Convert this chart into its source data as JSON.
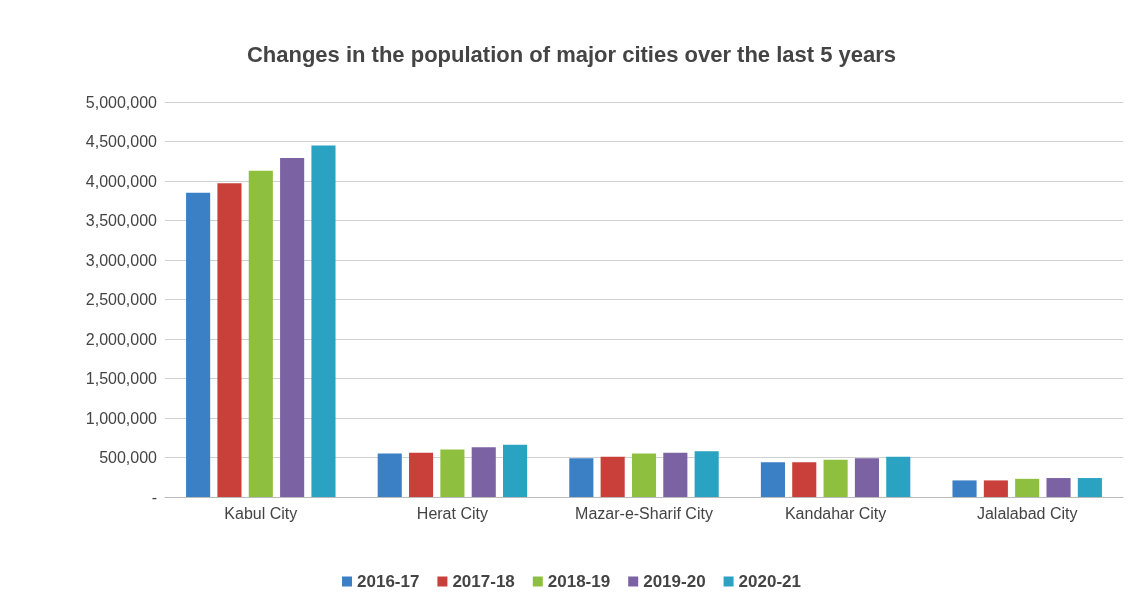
{
  "chart_data": {
    "type": "bar",
    "title": "Changes in the population of major cities over the last 5 years",
    "categories": [
      "Kabul City",
      "Herat City",
      "Mazar-e-Sharif City",
      "Kandahar City",
      "Jalalabad City"
    ],
    "series": [
      {
        "name": "2016-17",
        "color": "#3b7fc4",
        "values": [
          3850000,
          550000,
          490000,
          440000,
          210000
        ]
      },
      {
        "name": "2017-18",
        "color": "#c9403a",
        "values": [
          3970000,
          560000,
          510000,
          440000,
          210000
        ]
      },
      {
        "name": "2018-19",
        "color": "#8fbf3f",
        "values": [
          4130000,
          600000,
          550000,
          470000,
          230000
        ]
      },
      {
        "name": "2019-20",
        "color": "#7b62a3",
        "values": [
          4290000,
          630000,
          560000,
          490000,
          240000
        ]
      },
      {
        "name": "2020-21",
        "color": "#2aa3c2",
        "values": [
          4450000,
          660000,
          580000,
          510000,
          240000
        ]
      }
    ],
    "ylim": [
      0,
      5000000
    ],
    "yticks": [
      {
        "value": 0,
        "label": "-"
      },
      {
        "value": 500000,
        "label": "500,000"
      },
      {
        "value": 1000000,
        "label": "1,000,000"
      },
      {
        "value": 1500000,
        "label": "1,500,000"
      },
      {
        "value": 2000000,
        "label": "2,000,000"
      },
      {
        "value": 2500000,
        "label": "2,500,000"
      },
      {
        "value": 3000000,
        "label": "3,000,000"
      },
      {
        "value": 3500000,
        "label": "3,500,000"
      },
      {
        "value": 4000000,
        "label": "4,000,000"
      },
      {
        "value": 4500000,
        "label": "4,500,000"
      },
      {
        "value": 5000000,
        "label": "5,000,000"
      }
    ],
    "grid": "y",
    "legend": "bottom"
  }
}
